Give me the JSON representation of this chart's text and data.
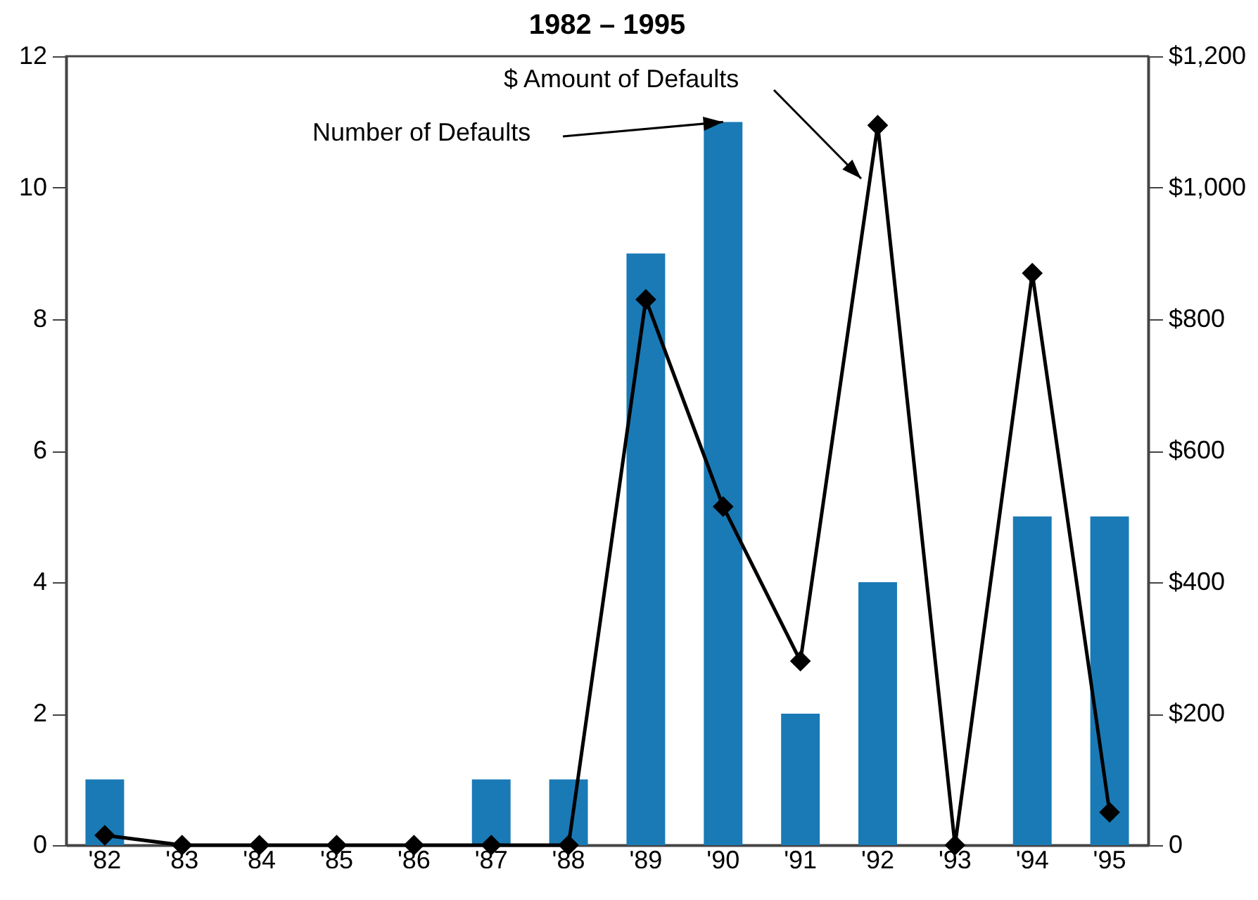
{
  "chart_data": {
    "type": "bar",
    "title": "1982 – 1995",
    "categories": [
      "'82",
      "'83",
      "'84",
      "'85",
      "'86",
      "'87",
      "'88",
      "'89",
      "'90",
      "'91",
      "'92",
      "'93",
      "'94",
      "'95"
    ],
    "series": [
      {
        "color": "#1a7ab5",
        "values": [
          1,
          0,
          0,
          0,
          0,
          1,
          1,
          9,
          11,
          2,
          4,
          0,
          5,
          5
        ]
      },
      {
        "type": "line",
        "axis": "y2",
        "color": "#000000",
        "marker": "diamond",
        "values": [
          15,
          0,
          0,
          0,
          0,
          0,
          0,
          830,
          515,
          280,
          1095,
          0,
          870,
          50
        ]
      }
    ],
    "ylim": [
      0,
      12
    ],
    "yticks": [
      0,
      2,
      4,
      6,
      8,
      10,
      12
    ],
    "y2lim": [
      0,
      1200
    ],
    "y2ticks": [
      {
        "value": 0,
        "label": "0"
      },
      {
        "value": 200,
        "label": "$200"
      },
      {
        "value": 400,
        "label": "$400"
      },
      {
        "value": 600,
        "label": "$600"
      },
      {
        "value": 800,
        "label": "$800"
      },
      {
        "value": 1000,
        "label": "$1,000"
      },
      {
        "value": 1200,
        "label": "$1,200"
      }
    ],
    "annotations": [
      {
        "text": "Number of Defaults",
        "x": "'90",
        "y": 11
      },
      "$ Amount of Defaults"
    ],
    "grid": false
  }
}
